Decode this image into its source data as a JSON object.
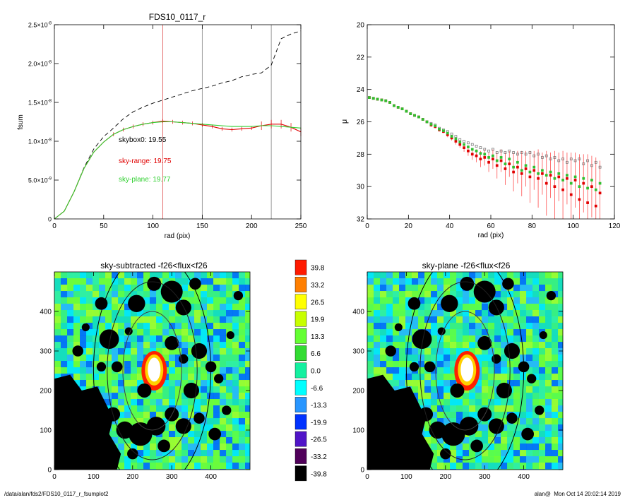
{
  "footer": {
    "path": "/data/alan/fds2/FDS10_0117_r_fsumplot2",
    "user": "alan@",
    "timestamp": "Mon Oct 14 20:02:14 2019"
  },
  "chart_data": [
    {
      "type": "line",
      "title": "FDS10_0117_r",
      "xlabel": "rad (pix)",
      "ylabel": "fsum",
      "xlim": [
        0,
        250
      ],
      "ylim": [
        0,
        2.5e-08
      ],
      "xticks": [
        0,
        50,
        100,
        150,
        200,
        250
      ],
      "yticks": [
        {
          "value": 0,
          "mantissa": "0",
          "exp": ""
        },
        {
          "value": 5e-09,
          "mantissa": "5.0×10",
          "exp": "-9"
        },
        {
          "value": 1e-08,
          "mantissa": "1.0×10",
          "exp": "-8"
        },
        {
          "value": 1.5e-08,
          "mantissa": "1.5×10",
          "exp": "-8"
        },
        {
          "value": 2e-08,
          "mantissa": "2.0×10",
          "exp": "-8"
        },
        {
          "value": 2.5e-08,
          "mantissa": "2.5×10",
          "exp": "-8"
        }
      ],
      "vlines": [
        {
          "x": 110,
          "color": "#e06060"
        },
        {
          "x": 150,
          "color": "#909090"
        },
        {
          "x": 220,
          "color": "#909090"
        }
      ],
      "annotations": [
        {
          "text": "skybox0: 19.55",
          "color": "#000000"
        },
        {
          "text": "sky-range: 19.75",
          "color": "#e00000"
        },
        {
          "text": "sky-plane: 19.77",
          "color": "#30d030"
        }
      ],
      "series": [
        {
          "style": "dashed",
          "color": "#000000",
          "x": [
            0,
            10,
            20,
            30,
            40,
            50,
            60,
            70,
            80,
            90,
            100,
            110,
            120,
            130,
            140,
            150,
            160,
            170,
            180,
            190,
            200,
            210,
            220,
            230,
            240,
            250
          ],
          "y": [
            0,
            1e-09,
            3.5e-09,
            6.6e-09,
            9e-09,
            1.06e-08,
            1.17e-08,
            1.29e-08,
            1.38e-08,
            1.44e-08,
            1.49e-08,
            1.53e-08,
            1.57e-08,
            1.61e-08,
            1.65e-08,
            1.68e-08,
            1.71e-08,
            1.75e-08,
            1.78e-08,
            1.83e-08,
            1.86e-08,
            1.88e-08,
            1.98e-08,
            2.32e-08,
            2.38e-08,
            2.42e-08
          ]
        },
        {
          "style": "solid",
          "color": "#e00000",
          "x": [
            0,
            10,
            20,
            30,
            40,
            50,
            60,
            70,
            80,
            90,
            100,
            110,
            120,
            130,
            140,
            150,
            160,
            170,
            180,
            190,
            200,
            210,
            220,
            230,
            240,
            250
          ],
          "y": [
            0,
            1e-09,
            3.5e-09,
            6.5e-09,
            8.6e-09,
            9.9e-09,
            1.09e-08,
            1.15e-08,
            1.19e-08,
            1.22e-08,
            1.24e-08,
            1.26e-08,
            1.25e-08,
            1.24e-08,
            1.23e-08,
            1.21e-08,
            1.19e-08,
            1.16e-08,
            1.15e-08,
            1.16e-08,
            1.17e-08,
            1.2e-08,
            1.22e-08,
            1.22e-08,
            1.18e-08,
            1.12e-08
          ]
        },
        {
          "style": "solid",
          "color": "#30d030",
          "x": [
            0,
            10,
            20,
            30,
            40,
            50,
            60,
            70,
            80,
            90,
            100,
            110,
            120,
            130,
            140,
            150,
            160,
            170,
            180,
            190,
            200,
            210,
            220,
            230,
            240,
            250
          ],
          "y": [
            0,
            1e-09,
            3.5e-09,
            6.5e-09,
            8.6e-09,
            9.9e-09,
            1.09e-08,
            1.15e-08,
            1.19e-08,
            1.22e-08,
            1.24e-08,
            1.25e-08,
            1.25e-08,
            1.24e-08,
            1.23e-08,
            1.22e-08,
            1.21e-08,
            1.2e-08,
            1.19e-08,
            1.19e-08,
            1.19e-08,
            1.2e-08,
            1.2e-08,
            1.19e-08,
            1.18e-08,
            1.17e-08
          ]
        }
      ]
    },
    {
      "type": "scatter",
      "title": "",
      "xlabel": "rad (pix)",
      "ylabel": "μ",
      "xlim": [
        0,
        120
      ],
      "ylim": [
        32,
        20
      ],
      "xticks": [
        0,
        20,
        40,
        60,
        80,
        100,
        120
      ],
      "yticks": [
        20,
        22,
        24,
        26,
        28,
        30,
        32
      ],
      "series": [
        {
          "color": "#707070",
          "x": [
            1,
            3,
            5,
            7,
            9,
            11,
            13,
            15,
            17,
            19,
            21,
            23,
            25,
            27,
            29,
            31,
            33,
            35,
            37,
            39,
            41,
            43,
            45,
            47,
            49,
            51,
            53,
            55,
            57,
            59,
            61,
            63,
            65,
            67,
            69,
            71,
            73,
            75,
            77,
            79,
            81,
            83,
            85,
            87,
            89,
            91,
            93,
            95,
            97,
            99,
            101,
            103,
            105,
            107,
            109,
            111,
            113
          ],
          "y": [
            24.5,
            24.55,
            24.6,
            24.65,
            24.7,
            24.8,
            25.0,
            25.1,
            25.2,
            25.35,
            25.5,
            25.6,
            25.7,
            25.85,
            26.0,
            26.1,
            26.2,
            26.4,
            26.5,
            26.6,
            26.75,
            26.9,
            27.1,
            27.2,
            27.3,
            27.4,
            27.5,
            27.6,
            27.7,
            27.8,
            27.7,
            27.9,
            27.8,
            27.9,
            27.8,
            27.9,
            28.0,
            27.9,
            28.0,
            27.9,
            28.1,
            28.0,
            28.2,
            28.1,
            28.3,
            28.2,
            28.4,
            28.3,
            28.5,
            28.3,
            28.4,
            28.3,
            28.6,
            28.4,
            28.7,
            28.5,
            28.8
          ]
        },
        {
          "color": "#e00000",
          "x": [
            1,
            3,
            5,
            7,
            9,
            11,
            13,
            15,
            17,
            19,
            21,
            23,
            25,
            27,
            29,
            31,
            33,
            35,
            37,
            39,
            41,
            43,
            45,
            47,
            49,
            51,
            53,
            55,
            57,
            59,
            61,
            63,
            65,
            67,
            69,
            71,
            73,
            75,
            77,
            79,
            81,
            83,
            85,
            87,
            89,
            91,
            93,
            95,
            97,
            99,
            101,
            103,
            105,
            107,
            109,
            111,
            113
          ],
          "y": [
            24.5,
            24.55,
            24.6,
            24.65,
            24.7,
            24.8,
            25.0,
            25.1,
            25.2,
            25.35,
            25.5,
            25.6,
            25.7,
            25.85,
            26.0,
            26.2,
            26.3,
            26.5,
            26.6,
            26.8,
            27.0,
            27.2,
            27.4,
            27.6,
            27.8,
            28.0,
            28.1,
            28.3,
            28.2,
            28.5,
            28.3,
            28.7,
            28.4,
            28.9,
            28.6,
            29.1,
            28.8,
            29.2,
            28.9,
            29.4,
            29.0,
            29.5,
            29.2,
            29.8,
            29.3,
            30.0,
            29.4,
            30.2,
            29.5,
            30.5,
            29.6,
            30.8,
            29.8,
            31.0,
            30.0,
            31.2,
            30.4
          ],
          "err": [
            0.05,
            0.05,
            0.05,
            0.05,
            0.05,
            0.05,
            0.05,
            0.05,
            0.05,
            0.05,
            0.05,
            0.05,
            0.05,
            0.05,
            0.05,
            0.1,
            0.1,
            0.1,
            0.1,
            0.15,
            0.15,
            0.2,
            0.2,
            0.25,
            0.3,
            0.35,
            0.4,
            0.5,
            0.5,
            0.6,
            0.6,
            0.8,
            0.7,
            1.0,
            0.8,
            1.2,
            1.0,
            1.4,
            1.1,
            1.6,
            1.2,
            1.8,
            1.3,
            2.0,
            1.4,
            2.2,
            1.5,
            2.4,
            1.6,
            2.6,
            1.7,
            2.8,
            1.8,
            3.0,
            1.9,
            3.0,
            2.0
          ]
        },
        {
          "color": "#30c030",
          "x": [
            1,
            3,
            5,
            7,
            9,
            11,
            13,
            15,
            17,
            19,
            21,
            23,
            25,
            27,
            29,
            31,
            33,
            35,
            37,
            39,
            41,
            43,
            45,
            47,
            49,
            51,
            53,
            55,
            57,
            59,
            61,
            63,
            65,
            67,
            69,
            71,
            73,
            75,
            77,
            79,
            81,
            83,
            85,
            87,
            89,
            91,
            93,
            95,
            97,
            99,
            101,
            103,
            105,
            107,
            109,
            111,
            113
          ],
          "y": [
            24.5,
            24.55,
            24.6,
            24.65,
            24.7,
            24.8,
            25.0,
            25.1,
            25.2,
            25.35,
            25.5,
            25.6,
            25.7,
            25.85,
            26.0,
            26.15,
            26.25,
            26.45,
            26.55,
            26.7,
            26.9,
            27.05,
            27.25,
            27.4,
            27.55,
            27.7,
            27.8,
            27.95,
            28.0,
            28.2,
            28.1,
            28.4,
            28.2,
            28.6,
            28.3,
            28.8,
            28.5,
            29.0,
            28.7,
            29.1,
            28.8,
            29.2,
            29.0,
            29.3,
            29.1,
            29.5,
            29.2,
            29.6,
            29.3,
            29.8,
            29.4,
            30.0,
            29.5,
            30.1,
            29.6,
            30.2,
            29.8
          ]
        }
      ]
    },
    {
      "type": "heatmap",
      "title": "sky-subtracted -f26<flux<f26",
      "xlim": [
        0,
        500
      ],
      "ylim": [
        0,
        500
      ],
      "xticks": [
        0,
        100,
        200,
        300,
        400
      ],
      "yticks": [
        0,
        100,
        200,
        300,
        400
      ],
      "ellipses": [
        {
          "cx": 250,
          "cy": 250,
          "rx": 75,
          "ry": 150,
          "color": "#404040"
        },
        {
          "cx": 250,
          "cy": 250,
          "rx": 115,
          "ry": 225,
          "color": "#202020"
        },
        {
          "cx": 250,
          "cy": 250,
          "rx": 150,
          "ry": 300,
          "color": "#000000"
        }
      ]
    },
    {
      "type": "heatmap",
      "title": "sky-plane -f26<flux<f26",
      "xlim": [
        0,
        500
      ],
      "ylim": [
        0,
        500
      ],
      "xticks": [
        0,
        100,
        200,
        300,
        400
      ],
      "yticks": [
        0,
        100,
        200,
        300,
        400
      ],
      "ellipses": [
        {
          "cx": 250,
          "cy": 250,
          "rx": 75,
          "ry": 150,
          "color": "#404040"
        },
        {
          "cx": 250,
          "cy": 250,
          "rx": 115,
          "ry": 225,
          "color": "#202020"
        },
        {
          "cx": 250,
          "cy": 250,
          "rx": 150,
          "ry": 300,
          "color": "#000000"
        }
      ]
    }
  ],
  "colorbar": {
    "labels": [
      "39.8",
      "33.2",
      "26.5",
      "19.9",
      "13.3",
      "6.6",
      "0.0",
      "-6.6",
      "-13.3",
      "-19.9",
      "-26.5",
      "-33.2",
      "-39.8"
    ],
    "colors": [
      "#ff1a00",
      "#ff7f00",
      "#ffff00",
      "#c8ff00",
      "#64ff32",
      "#32dc32",
      "#14f0a0",
      "#00ffff",
      "#2896ff",
      "#0032ff",
      "#5014c8",
      "#50005a",
      "#000000"
    ]
  },
  "heat_palette": [
    "#00e6ff",
    "#14dcbe",
    "#3cf07a",
    "#64ff3c",
    "#aaff1e",
    "#28b4ff",
    "#78ff28",
    "#32f0a0",
    "#0064ff"
  ],
  "masks": [
    [
      210,
      420,
      22
    ],
    [
      255,
      470,
      18
    ],
    [
      300,
      450,
      28
    ],
    [
      330,
      410,
      20
    ],
    [
      360,
      470,
      15
    ],
    [
      80,
      360,
      10
    ],
    [
      120,
      420,
      16
    ],
    [
      140,
      330,
      25
    ],
    [
      160,
      260,
      14
    ],
    [
      190,
      350,
      10
    ],
    [
      300,
      320,
      18
    ],
    [
      330,
      280,
      12
    ],
    [
      370,
      300,
      20
    ],
    [
      400,
      260,
      14
    ],
    [
      420,
      230,
      12
    ],
    [
      350,
      200,
      20
    ],
    [
      300,
      140,
      18
    ],
    [
      260,
      110,
      24
    ],
    [
      220,
      90,
      30
    ],
    [
      180,
      100,
      22
    ],
    [
      150,
      140,
      18
    ],
    [
      330,
      110,
      20
    ],
    [
      370,
      130,
      14
    ],
    [
      410,
      90,
      16
    ],
    [
      440,
      150,
      12
    ],
    [
      120,
      260,
      12
    ],
    [
      60,
      300,
      14
    ],
    [
      450,
      340,
      10
    ],
    [
      230,
      200,
      18
    ],
    [
      280,
      60,
      16
    ],
    [
      200,
      40,
      14
    ],
    [
      470,
      440,
      12
    ],
    [
      100,
      180,
      10
    ]
  ]
}
